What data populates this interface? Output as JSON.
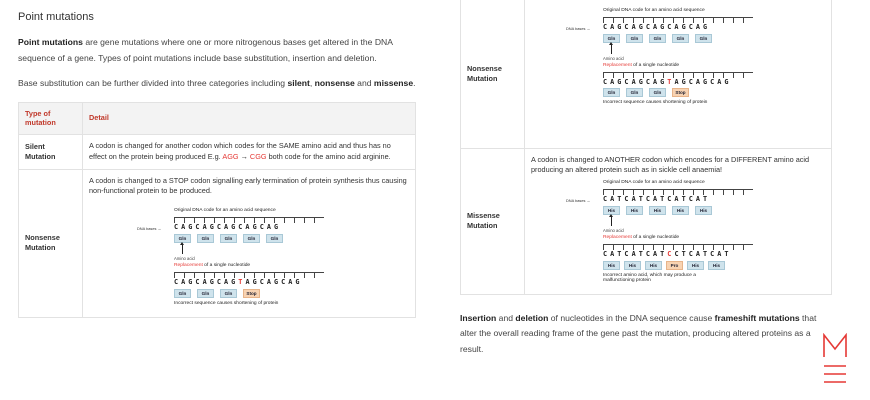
{
  "left": {
    "heading": "Point mutations",
    "p1_bold": "Point mutations",
    "p1_rest": " are gene mutations where one or more nitrogenous bases get altered in the DNA sequence of a gene. Types of point mutations include base substitution, insertion and deletion.",
    "p2_a": "Base substitution can be further divided into three categories including ",
    "p2_silent": "silent",
    "p2_comma": ", ",
    "p2_nonsense": "nonsense",
    "p2_and": " and ",
    "p2_missense": "missense",
    "p2_end": ".",
    "table": {
      "header_type": "Type of mutation",
      "header_detail": "Detail",
      "silent_type": "Silent Mutation",
      "silent_a": "A codon is changed for another codon which codes for the SAME amino acid and thus has no effect on the protein being produced E.g. ",
      "silent_c1": "AGG",
      "silent_arrow": " → ",
      "silent_c2": "CGG",
      "silent_b": " both code for the amino acid arginine.",
      "nonsense_type": "Nonsense Mutation",
      "nonsense_detail": "A codon is changed to a STOP codon signalling early termination of protein synthesis thus causing non-functional protein to be produced."
    }
  },
  "figures": {
    "original_caption": "Original DNA code for an amino acid sequence",
    "dna_bases_label": "DNA bases",
    "amino_acid_label": "Amino acid",
    "replacement_word": "Replacement",
    "replacement_rest": " of a single nucleotide",
    "nonsense": {
      "seq1": "CAGCAGCAGCAGCAG",
      "aa1": [
        "Gln",
        "Gln",
        "Gln",
        "Gln",
        "Gln"
      ],
      "seq2_a": "CAGCAGCAG",
      "seq2_mut": "T",
      "seq2_b": "AGCAGCAG",
      "aa2": [
        "Gln",
        "Gln",
        "Gln",
        "Stop"
      ],
      "note": "Incorrect sequence causes shortening of protein"
    },
    "missense": {
      "seq1": "CATCATCATCATCAT",
      "aa1": [
        "His",
        "His",
        "His",
        "His",
        "His"
      ],
      "seq2_a": "CATCATCAT",
      "seq2_mut": "C",
      "seq2_b": "CTCATCAT",
      "aa2": [
        "His",
        "His",
        "His",
        "Pro",
        "His",
        "His"
      ],
      "note": "Incorrect amino acid, which may produce a malfunctioning protein"
    }
  },
  "right": {
    "nonsense_type": "Nonsense Mutation",
    "missense_type": "Missense Mutation",
    "missense_detail": "A codon is changed to ANOTHER codon which encodes for a DIFFERENT amino acid producing an altered protein such as in sickle cell anaemia!",
    "p_insertion": "Insertion",
    "p_and": " and ",
    "p_deletion": "deletion",
    "p_mid": " of nucleotides in the DNA sequence cause ",
    "p_frameshift": "frameshift mutations",
    "p_end": " that alter the overall reading frame of the gene past the mutation, producing altered proteins as a result."
  },
  "colors": {
    "accent": "#c0392b",
    "mutation": "#e53935",
    "aa_box": "#cfe3ec",
    "stop_box": "#f8d3b2"
  },
  "logo_icon": "m-logo-icon"
}
